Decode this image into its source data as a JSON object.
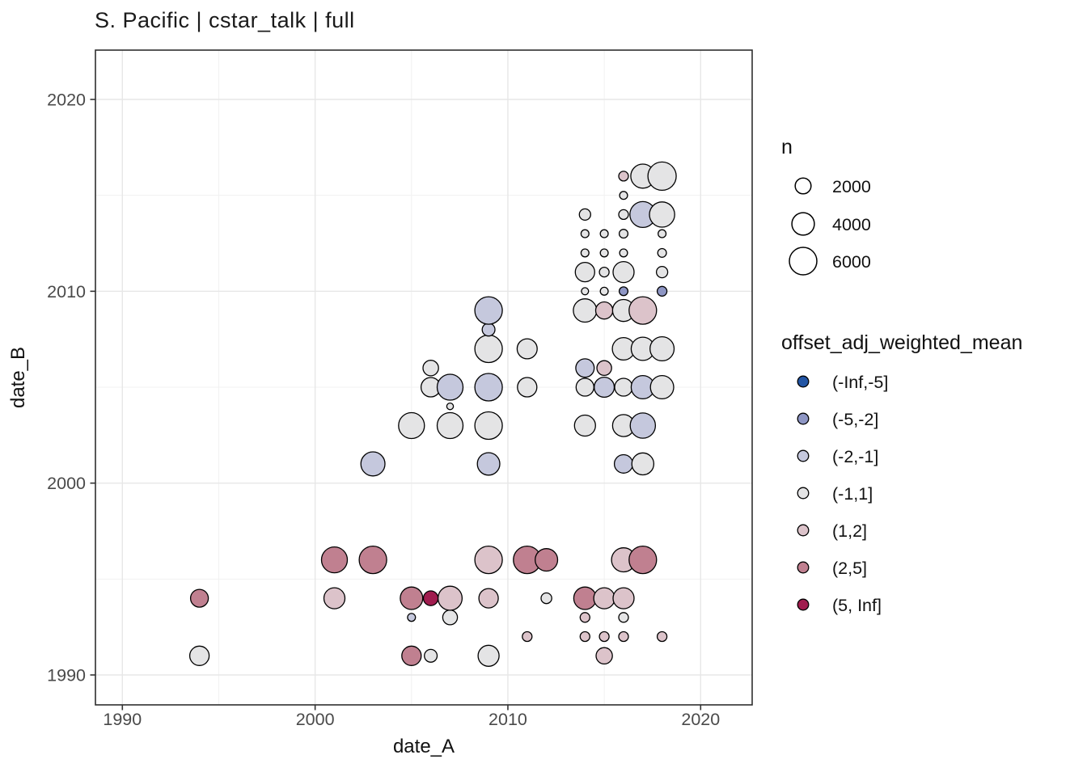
{
  "chart_data": {
    "type": "scatter",
    "title": "S. Pacific | cstar_talk | full",
    "xlabel": "date_A",
    "ylabel": "date_B",
    "x_ticks": [
      1990,
      2000,
      2010,
      2020
    ],
    "y_ticks": [
      1990,
      2000,
      2010,
      2020
    ],
    "x_minor": [
      1995,
      2005,
      2015
    ],
    "y_minor": [
      1995,
      2005,
      2015
    ],
    "xlim": [
      1988.6,
      2022.7
    ],
    "ylim": [
      1988.4,
      2021.6
    ],
    "grid": "major+minor",
    "legend_position": "right",
    "size_legend": {
      "title": "n",
      "values": [
        2000,
        4000,
        6000
      ]
    },
    "color_legend": {
      "title": "offset_adj_weighted_mean",
      "bins": [
        {
          "label": "(-Inf,-5]",
          "color": "#2255a4"
        },
        {
          "label": "(-5,-2]",
          "color": "#8e96c4"
        },
        {
          "label": "(-2,-1]",
          "color": "#c5c8dd"
        },
        {
          "label": "(-1,1]",
          "color": "#e4e4e5"
        },
        {
          "label": "(1,2]",
          "color": "#dcc3ca"
        },
        {
          "label": "(2,5]",
          "color": "#c08090"
        },
        {
          "label": "(5, Inf]",
          "color": "#a01c4e"
        }
      ]
    },
    "points": [
      {
        "date_A": 1994,
        "date_B": 1991,
        "n": 3000,
        "bin": "(-1,1]"
      },
      {
        "date_A": 1994,
        "date_B": 1994,
        "n": 2500,
        "bin": "(2,5]"
      },
      {
        "date_A": 2001,
        "date_B": 1994,
        "n": 3500,
        "bin": "(1,2]"
      },
      {
        "date_A": 2001,
        "date_B": 1996,
        "n": 5300,
        "bin": "(2,5]"
      },
      {
        "date_A": 2003,
        "date_B": 1996,
        "n": 6000,
        "bin": "(2,5]"
      },
      {
        "date_A": 2003,
        "date_B": 2001,
        "n": 4600,
        "bin": "(-2,-1]"
      },
      {
        "date_A": 2005,
        "date_B": 1991,
        "n": 3000,
        "bin": "(2,5]"
      },
      {
        "date_A": 2005,
        "date_B": 1993,
        "n": 500,
        "bin": "(-2,-1]"
      },
      {
        "date_A": 2005,
        "date_B": 1994,
        "n": 4000,
        "bin": "(2,5]"
      },
      {
        "date_A": 2005,
        "date_B": 2003,
        "n": 5300,
        "bin": "(-1,1]"
      },
      {
        "date_A": 2006,
        "date_B": 1991,
        "n": 1300,
        "bin": "(-1,1]"
      },
      {
        "date_A": 2006,
        "date_B": 1994,
        "n": 1700,
        "bin": "(5, Inf]"
      },
      {
        "date_A": 2006,
        "date_B": 2005,
        "n": 3000,
        "bin": "(-1,1]"
      },
      {
        "date_A": 2006,
        "date_B": 2006,
        "n": 1900,
        "bin": "(-1,1]"
      },
      {
        "date_A": 2007,
        "date_B": 1993,
        "n": 1700,
        "bin": "(-1,1]"
      },
      {
        "date_A": 2007,
        "date_B": 1994,
        "n": 4600,
        "bin": "(1,2]"
      },
      {
        "date_A": 2007,
        "date_B": 2003,
        "n": 5300,
        "bin": "(-1,1]"
      },
      {
        "date_A": 2007,
        "date_B": 2004,
        "n": 350,
        "bin": "(-1,1]"
      },
      {
        "date_A": 2007,
        "date_B": 2005,
        "n": 5300,
        "bin": "(-2,-1]"
      },
      {
        "date_A": 2009,
        "date_B": 1991,
        "n": 3500,
        "bin": "(-1,1]"
      },
      {
        "date_A": 2009,
        "date_B": 1994,
        "n": 3000,
        "bin": "(1,2]"
      },
      {
        "date_A": 2009,
        "date_B": 1996,
        "n": 6000,
        "bin": "(1,2]"
      },
      {
        "date_A": 2009,
        "date_B": 2001,
        "n": 4000,
        "bin": "(-2,-1]"
      },
      {
        "date_A": 2009,
        "date_B": 2003,
        "n": 6000,
        "bin": "(-1,1]"
      },
      {
        "date_A": 2009,
        "date_B": 2005,
        "n": 6000,
        "bin": "(-2,-1]"
      },
      {
        "date_A": 2009,
        "date_B": 2007,
        "n": 6000,
        "bin": "(-1,1]"
      },
      {
        "date_A": 2009,
        "date_B": 2008,
        "n": 1300,
        "bin": "(-2,-1]"
      },
      {
        "date_A": 2009,
        "date_B": 2009,
        "n": 6000,
        "bin": "(-2,-1]"
      },
      {
        "date_A": 2011,
        "date_B": 1992,
        "n": 750,
        "bin": "(1,2]"
      },
      {
        "date_A": 2011,
        "date_B": 1996,
        "n": 6000,
        "bin": "(2,5]"
      },
      {
        "date_A": 2011,
        "date_B": 2005,
        "n": 3000,
        "bin": "(-1,1]"
      },
      {
        "date_A": 2011,
        "date_B": 2007,
        "n": 3200,
        "bin": "(-1,1]"
      },
      {
        "date_A": 2012,
        "date_B": 1994,
        "n": 900,
        "bin": "(-1,1]"
      },
      {
        "date_A": 2012,
        "date_B": 1996,
        "n": 4000,
        "bin": "(2,5]"
      },
      {
        "date_A": 2014,
        "date_B": 1992,
        "n": 750,
        "bin": "(1,2]"
      },
      {
        "date_A": 2014,
        "date_B": 1993,
        "n": 750,
        "bin": "(1,2]"
      },
      {
        "date_A": 2014,
        "date_B": 1994,
        "n": 4000,
        "bin": "(2,5]"
      },
      {
        "date_A": 2014,
        "date_B": 2003,
        "n": 3500,
        "bin": "(-1,1]"
      },
      {
        "date_A": 2014,
        "date_B": 2005,
        "n": 2500,
        "bin": "(-1,1]"
      },
      {
        "date_A": 2014,
        "date_B": 2006,
        "n": 2700,
        "bin": "(-2,-1]"
      },
      {
        "date_A": 2014,
        "date_B": 2009,
        "n": 4300,
        "bin": "(-1,1]"
      },
      {
        "date_A": 2014,
        "date_B": 2010,
        "n": 400,
        "bin": "(-1,1]"
      },
      {
        "date_A": 2014,
        "date_B": 2011,
        "n": 3000,
        "bin": "(-1,1]"
      },
      {
        "date_A": 2014,
        "date_B": 2012,
        "n": 500,
        "bin": "(-1,1]"
      },
      {
        "date_A": 2014,
        "date_B": 2013,
        "n": 500,
        "bin": "(-1,1]"
      },
      {
        "date_A": 2014,
        "date_B": 2014,
        "n": 1000,
        "bin": "(-1,1]"
      },
      {
        "date_A": 2015,
        "date_B": 1991,
        "n": 2100,
        "bin": "(1,2]"
      },
      {
        "date_A": 2015,
        "date_B": 1992,
        "n": 750,
        "bin": "(1,2]"
      },
      {
        "date_A": 2015,
        "date_B": 1994,
        "n": 3500,
        "bin": "(1,2]"
      },
      {
        "date_A": 2015,
        "date_B": 2005,
        "n": 3200,
        "bin": "(-2,-1]"
      },
      {
        "date_A": 2015,
        "date_B": 2006,
        "n": 1700,
        "bin": "(1,2]"
      },
      {
        "date_A": 2015,
        "date_B": 2009,
        "n": 2300,
        "bin": "(1,2]"
      },
      {
        "date_A": 2015,
        "date_B": 2010,
        "n": 500,
        "bin": "(-1,1]"
      },
      {
        "date_A": 2015,
        "date_B": 2011,
        "n": 750,
        "bin": "(-1,1]"
      },
      {
        "date_A": 2015,
        "date_B": 2012,
        "n": 500,
        "bin": "(-1,1]"
      },
      {
        "date_A": 2015,
        "date_B": 2013,
        "n": 500,
        "bin": "(-1,1]"
      },
      {
        "date_A": 2016,
        "date_B": 1992,
        "n": 750,
        "bin": "(1,2]"
      },
      {
        "date_A": 2016,
        "date_B": 1993,
        "n": 750,
        "bin": "(-1,1]"
      },
      {
        "date_A": 2016,
        "date_B": 1994,
        "n": 3500,
        "bin": "(1,2]"
      },
      {
        "date_A": 2016,
        "date_B": 1996,
        "n": 4600,
        "bin": "(1,2]"
      },
      {
        "date_A": 2016,
        "date_B": 2001,
        "n": 2700,
        "bin": "(-2,-1]"
      },
      {
        "date_A": 2016,
        "date_B": 2003,
        "n": 3800,
        "bin": "(-1,1]"
      },
      {
        "date_A": 2016,
        "date_B": 2005,
        "n": 2500,
        "bin": "(-1,1]"
      },
      {
        "date_A": 2016,
        "date_B": 2007,
        "n": 4000,
        "bin": "(-1,1]"
      },
      {
        "date_A": 2016,
        "date_B": 2009,
        "n": 3800,
        "bin": "(-1,1]"
      },
      {
        "date_A": 2016,
        "date_B": 2010,
        "n": 600,
        "bin": "(-5,-2]"
      },
      {
        "date_A": 2016,
        "date_B": 2011,
        "n": 3500,
        "bin": "(-1,1]"
      },
      {
        "date_A": 2016,
        "date_B": 2012,
        "n": 500,
        "bin": "(-1,1]"
      },
      {
        "date_A": 2016,
        "date_B": 2013,
        "n": 600,
        "bin": "(-1,1]"
      },
      {
        "date_A": 2016,
        "date_B": 2014,
        "n": 750,
        "bin": "(-1,1]"
      },
      {
        "date_A": 2016,
        "date_B": 2015,
        "n": 500,
        "bin": "(-1,1]"
      },
      {
        "date_A": 2016,
        "date_B": 2016,
        "n": 750,
        "bin": "(1,2]"
      },
      {
        "date_A": 2017,
        "date_B": 1996,
        "n": 6000,
        "bin": "(2,5]"
      },
      {
        "date_A": 2017,
        "date_B": 2001,
        "n": 3800,
        "bin": "(-1,1]"
      },
      {
        "date_A": 2017,
        "date_B": 2003,
        "n": 5000,
        "bin": "(-2,-1]"
      },
      {
        "date_A": 2017,
        "date_B": 2005,
        "n": 4300,
        "bin": "(-2,-1]"
      },
      {
        "date_A": 2017,
        "date_B": 2007,
        "n": 4300,
        "bin": "(-1,1]"
      },
      {
        "date_A": 2017,
        "date_B": 2009,
        "n": 6000,
        "bin": "(1,2]"
      },
      {
        "date_A": 2017,
        "date_B": 2014,
        "n": 5300,
        "bin": "(-2,-1]"
      },
      {
        "date_A": 2017,
        "date_B": 2016,
        "n": 4600,
        "bin": "(-1,1]"
      },
      {
        "date_A": 2018,
        "date_B": 1992,
        "n": 750,
        "bin": "(1,2]"
      },
      {
        "date_A": 2018,
        "date_B": 2005,
        "n": 4300,
        "bin": "(-1,1]"
      },
      {
        "date_A": 2018,
        "date_B": 2007,
        "n": 4600,
        "bin": "(-1,1]"
      },
      {
        "date_A": 2018,
        "date_B": 2010,
        "n": 750,
        "bin": "(-5,-2]"
      },
      {
        "date_A": 2018,
        "date_B": 2011,
        "n": 1000,
        "bin": "(-1,1]"
      },
      {
        "date_A": 2018,
        "date_B": 2012,
        "n": 600,
        "bin": "(-1,1]"
      },
      {
        "date_A": 2018,
        "date_B": 2013,
        "n": 500,
        "bin": "(-1,1]"
      },
      {
        "date_A": 2018,
        "date_B": 2014,
        "n": 5000,
        "bin": "(-1,1]"
      },
      {
        "date_A": 2018,
        "date_B": 2016,
        "n": 6300,
        "bin": "(-1,1]"
      }
    ],
    "style": {
      "panel_border": "#2e2e2e",
      "grid_major": "#e7e7e7",
      "grid_minor": "#f1f1f1",
      "tick_label_color": "#4a4a4a",
      "text_color": "#111111",
      "point_stroke": "#000000"
    }
  }
}
